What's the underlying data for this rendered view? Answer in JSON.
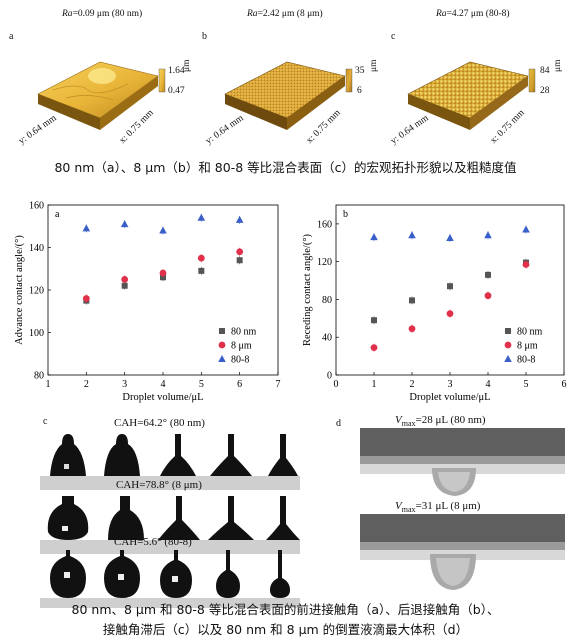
{
  "top_figure": {
    "panels": [
      {
        "label": "a",
        "ra_prefix": "Ra",
        "ra_value": "=0.09 μm (80 nm)",
        "z_max": "1.64",
        "z_min": "0.47",
        "z_unit": "μm",
        "y_axis": "y: 0.64 mm",
        "x_axis": "x: 0.75 mm"
      },
      {
        "label": "b",
        "ra_prefix": "Ra",
        "ra_value": "=2.42 μm (8 μm)",
        "z_max": "35",
        "z_min": "6",
        "z_unit": "μm",
        "y_axis": "y: 0.64 mm",
        "x_axis": "x: 0.75 mm"
      },
      {
        "label": "c",
        "ra_prefix": "Ra",
        "ra_value": "=4.27 μm (80-8)",
        "z_max": "84",
        "z_min": "28",
        "z_unit": "μm",
        "y_axis": "y: 0.64 mm",
        "x_axis": "x: 0.75 mm"
      }
    ],
    "caption": "80 nm（a）、8 μm（b）和 80-8 等比混合表面（c）的宏观拓扑形貌以及粗糙度值"
  },
  "chart_data": [
    {
      "type": "scatter",
      "panel_label": "a",
      "xlabel": "Droplet volume/μL",
      "ylabel": "Advance contact angle/(°)",
      "xlim": [
        1,
        7
      ],
      "ylim": [
        80,
        160
      ],
      "xticks": [
        1,
        2,
        3,
        4,
        5,
        6,
        7
      ],
      "yticks": [
        80,
        100,
        120,
        140,
        160
      ],
      "legend_position": "bottom-right",
      "series": [
        {
          "name": "80 nm",
          "marker": "square",
          "color": "#555555",
          "x": [
            2,
            3,
            4,
            5,
            6
          ],
          "y": [
            115,
            122,
            126,
            129,
            134
          ]
        },
        {
          "name": "8 μm",
          "marker": "circle",
          "color": "#e0304a",
          "x": [
            2,
            3,
            4,
            5,
            6
          ],
          "y": [
            116,
            125,
            128,
            135,
            138
          ]
        },
        {
          "name": "80-8",
          "marker": "triangle",
          "color": "#3a5fc8",
          "x": [
            2,
            3,
            4,
            5,
            6
          ],
          "y": [
            149,
            151,
            148,
            154,
            153
          ]
        }
      ]
    },
    {
      "type": "scatter",
      "panel_label": "b",
      "xlabel": "Droplet volume/μL",
      "ylabel": "Receding contact angle/(°)",
      "xlim": [
        0,
        6
      ],
      "ylim": [
        0,
        180
      ],
      "xticks": [
        0,
        1,
        2,
        3,
        4,
        5,
        6
      ],
      "yticks": [
        0,
        40,
        80,
        120,
        160
      ],
      "legend_position": "bottom-right",
      "series": [
        {
          "name": "80 nm",
          "marker": "square",
          "color": "#555555",
          "x": [
            1,
            2,
            3,
            4,
            5
          ],
          "y": [
            58,
            79,
            94,
            106,
            119
          ]
        },
        {
          "name": "8 μm",
          "marker": "circle",
          "color": "#e0304a",
          "x": [
            1,
            2,
            3,
            4,
            5
          ],
          "y": [
            29,
            49,
            65,
            84,
            117
          ]
        },
        {
          "name": "80-8",
          "marker": "triangle",
          "color": "#3a5fc8",
          "x": [
            1,
            2,
            3,
            4,
            5
          ],
          "y": [
            146,
            148,
            145,
            148,
            154
          ]
        }
      ]
    }
  ],
  "bottom_figure": {
    "panel_c_label": "c",
    "cah_rows": [
      "CAH=64.2° (80 nm)",
      "CAH=78.8° (8 μm)",
      "CAH=5.6° (80-8)"
    ],
    "panel_d_label": "d",
    "vmax": [
      {
        "symbol": "V",
        "sub": "max",
        "value": "=28 μL (80 nm)"
      },
      {
        "symbol": "V",
        "sub": "max",
        "value": "=31 μL (8 μm)"
      }
    ],
    "caption_line1": "80 nm、8 μm 和 80-8 等比混合表面的前进接触角（a）、后退接触角（b）、",
    "caption_line2": "接触角滞后（c）以及 80 nm 和 8 μm 的倒置液滴最大体积（d）"
  }
}
